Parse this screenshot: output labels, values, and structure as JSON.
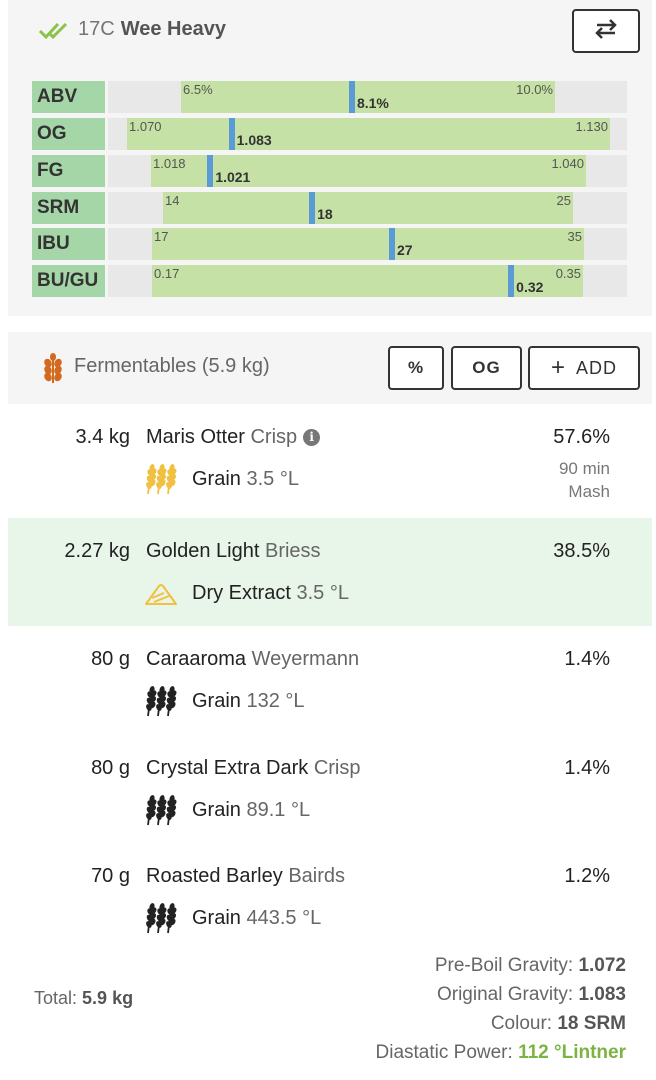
{
  "header": {
    "style_code": "17C",
    "style_name": "Wee Heavy",
    "swap_icon": "swap-horiz-icon",
    "status_icon": "double-check-icon"
  },
  "ranges": [
    {
      "label": "ABV",
      "min": "6.5%",
      "max": "10.0%",
      "value": "8.1%",
      "min_num": 6.5,
      "max_num": 10.0,
      "value_num": 8.1
    },
    {
      "label": "OG",
      "min": "1.070",
      "max": "1.130",
      "value": "1.083",
      "min_num": 1.07,
      "max_num": 1.13,
      "value_num": 1.083
    },
    {
      "label": "FG",
      "min": "1.018",
      "max": "1.040",
      "value": "1.021",
      "min_num": 1.018,
      "max_num": 1.04,
      "value_num": 1.021
    },
    {
      "label": "SRM",
      "min": "14",
      "max": "25",
      "value": "18",
      "min_num": 14,
      "max_num": 25,
      "value_num": 18
    },
    {
      "label": "IBU",
      "min": "17",
      "max": "35",
      "value": "27",
      "min_num": 17,
      "max_num": 35,
      "value_num": 27
    },
    {
      "label": "BU/GU",
      "min": "0.17",
      "max": "0.35",
      "value": "0.32",
      "min_num": 0.17,
      "max_num": 0.35,
      "value_num": 0.32
    }
  ],
  "fermentables": {
    "title": "Fermentables (5.9 kg)",
    "icon": "wheat-icon",
    "pct_button": "%",
    "og_button": "OG",
    "add_button": "ADD"
  },
  "items": [
    {
      "amount": "3.4 kg",
      "name": "Maris Otter",
      "supplier": "Crisp",
      "type": "Grain",
      "colour": "3.5 °L",
      "percent": "57.6%",
      "use_time": "90 min",
      "use": "Mash",
      "icon": "grain-icon",
      "icon_color": "#f0c040"
    },
    {
      "amount": "2.27 kg",
      "name": "Golden Light",
      "supplier": "Briess",
      "type": "Dry Extract",
      "colour": "3.5 °L",
      "percent": "38.5%",
      "icon": "dry-extract-icon",
      "icon_color": "#f0c040"
    },
    {
      "amount": "80 g",
      "name": "Caraaroma",
      "supplier": "Weyermann",
      "type": "Grain",
      "colour": "132 °L",
      "percent": "1.4%",
      "icon": "grain-icon",
      "icon_color": "#222222"
    },
    {
      "amount": "80 g",
      "name": "Crystal Extra Dark",
      "supplier": "Crisp",
      "type": "Grain",
      "colour": "89.1 °L",
      "percent": "1.4%",
      "icon": "grain-icon",
      "icon_color": "#222222"
    },
    {
      "amount": "70 g",
      "name": "Roasted Barley",
      "supplier": "Bairds",
      "type": "Grain",
      "colour": "443.5 °L",
      "percent": "1.2%",
      "icon": "grain-icon",
      "icon_color": "#222222"
    }
  ],
  "summary": {
    "total_label": "Total:",
    "total_value": "5.9 kg",
    "preboil_label": "Pre-Boil Gravity:",
    "preboil_value": "1.072",
    "og_label": "Original Gravity:",
    "og_value": "1.083",
    "colour_label": "Colour:",
    "colour_value": "18 SRM",
    "dp_label": "Diastatic Power:",
    "dp_value": "112 °Lintner"
  },
  "colors": {
    "range_label_bg": "#a5d6a7",
    "range_fill": "#c5e1a5",
    "marker": "#5b9bd5",
    "highlight_row": "#e8f5e9",
    "accent_green": "#7cb342"
  }
}
